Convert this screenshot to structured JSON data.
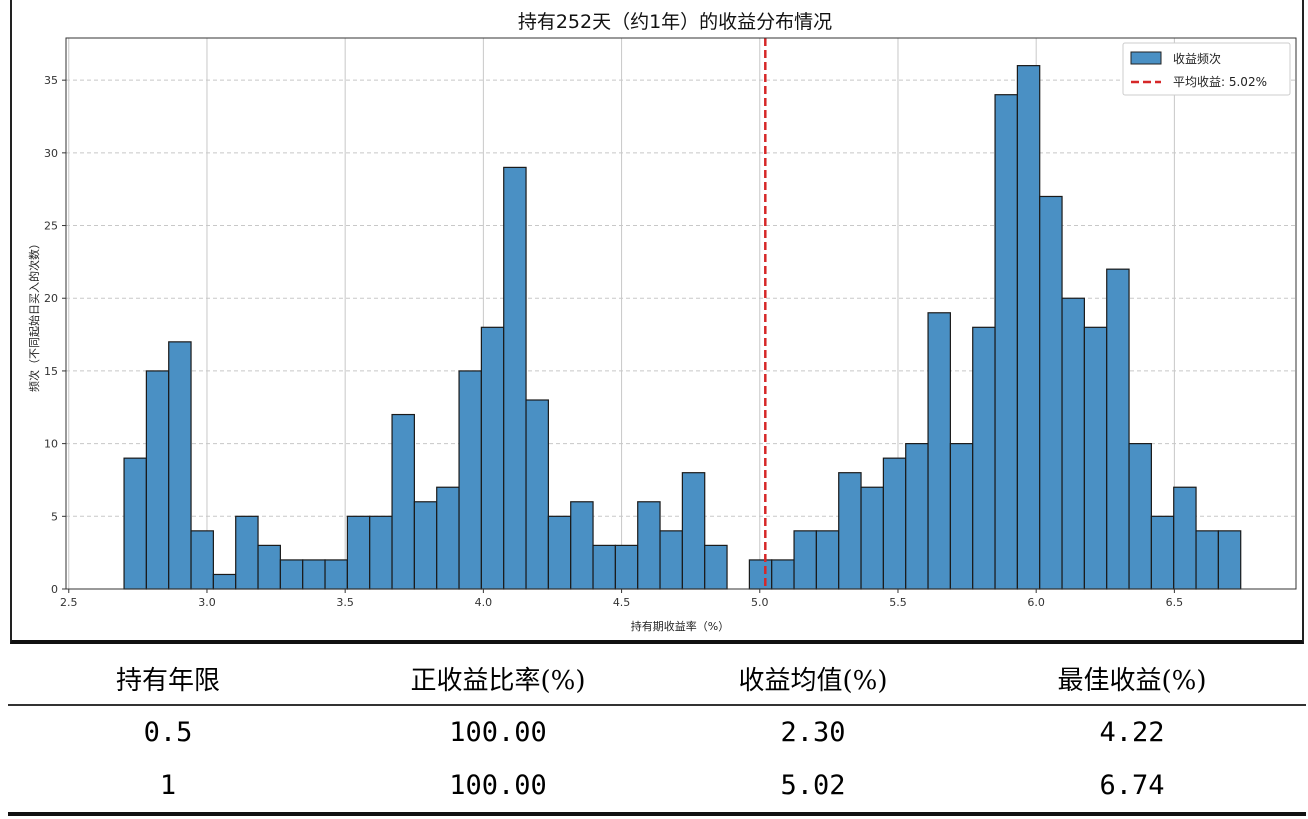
{
  "chart_data": {
    "type": "bar",
    "title": "持有252天（约1年）的收益分布情况",
    "xlabel": "持有期收益率（%）",
    "ylabel": "频次（不同起始日买入的次数）",
    "bin_start": 2.7,
    "bin_width": 0.0808,
    "values": [
      9,
      15,
      17,
      4,
      1,
      5,
      3,
      2,
      2,
      2,
      5,
      5,
      12,
      6,
      7,
      15,
      18,
      29,
      13,
      5,
      6,
      3,
      3,
      6,
      4,
      8,
      3,
      0,
      2,
      2,
      4,
      4,
      8,
      7,
      9,
      10,
      19,
      10,
      18,
      34,
      36,
      27,
      20,
      18,
      22,
      10,
      5,
      7,
      4,
      4
    ],
    "xlim": [
      2.49,
      6.94
    ],
    "ylim": [
      0,
      37.9
    ],
    "xticks": [
      "2.5",
      "3.0",
      "3.5",
      "4.0",
      "4.5",
      "5.0",
      "5.5",
      "6.0",
      "6.5"
    ],
    "yticks": [
      "0",
      "5",
      "10",
      "15",
      "20",
      "25",
      "30",
      "35"
    ],
    "mean_line": {
      "x": 5.02,
      "label": "平均收益: 5.02%",
      "color": "#d62728"
    },
    "series": [
      {
        "name": "收益频次",
        "color": "#4a90c4"
      }
    ],
    "grid": true,
    "legend": "top-right"
  },
  "table": {
    "headers": [
      "持有年限",
      "正收益比率(%)",
      "收益均值(%)",
      "最佳收益(%)"
    ],
    "rows": [
      [
        "0.5",
        "100.00",
        "2.30",
        "4.22"
      ],
      [
        "1",
        "100.00",
        "5.02",
        "6.74"
      ]
    ]
  }
}
